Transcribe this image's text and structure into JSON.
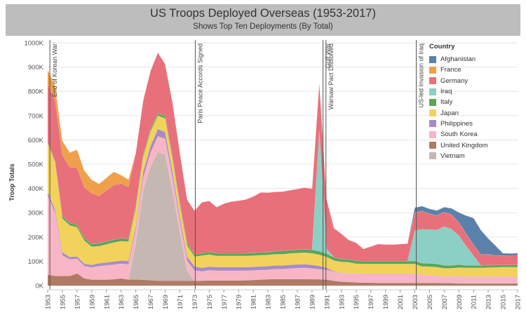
{
  "chart_data": {
    "type": "area",
    "stacked": true,
    "title": "US Troops Deployed Overseas (1953-2017)",
    "subtitle": "Shows Top Ten Deployments (By Total)",
    "ylabel": "Troop Totals",
    "xlabel": "",
    "ylim": [
      0,
      1000000
    ],
    "yticks": [
      0,
      100000,
      200000,
      300000,
      400000,
      500000,
      600000,
      700000,
      800000,
      900000,
      1000000
    ],
    "ytick_labels": [
      "0K",
      "100K",
      "200K",
      "300K",
      "400K",
      "500K",
      "600K",
      "700K",
      "800K",
      "900K",
      "1000K"
    ],
    "x": [
      1953,
      1954,
      1955,
      1956,
      1957,
      1958,
      1959,
      1960,
      1961,
      1962,
      1963,
      1964,
      1965,
      1966,
      1967,
      1968,
      1969,
      1970,
      1971,
      1972,
      1973,
      1974,
      1975,
      1976,
      1977,
      1978,
      1979,
      1980,
      1981,
      1982,
      1983,
      1984,
      1985,
      1986,
      1987,
      1988,
      1989,
      1990,
      1991,
      1992,
      1993,
      1994,
      1995,
      1996,
      1997,
      1998,
      1999,
      2000,
      2001,
      2002,
      2003,
      2004,
      2005,
      2006,
      2007,
      2008,
      2009,
      2010,
      2011,
      2012,
      2013,
      2014,
      2015,
      2016,
      2017
    ],
    "xticks": [
      1953,
      1955,
      1957,
      1959,
      1961,
      1963,
      1965,
      1967,
      1969,
      1971,
      1973,
      1975,
      1977,
      1979,
      1981,
      1983,
      1985,
      1987,
      1989,
      1991,
      1993,
      1995,
      1997,
      1999,
      2001,
      2003,
      2005,
      2007,
      2009,
      2011,
      2013,
      2015,
      2017
    ],
    "legend_title": "Country",
    "legend_position": "right",
    "grid": "horizontal",
    "series": [
      {
        "name": "United Kingdom",
        "color": "#b07a64",
        "values": [
          45000,
          40000,
          40000,
          40000,
          50000,
          30000,
          25000,
          25000,
          25000,
          26000,
          30000,
          25000,
          25000,
          24000,
          22000,
          20000,
          20000,
          20000,
          20000,
          20000,
          20000,
          20000,
          21000,
          21000,
          21000,
          21000,
          21000,
          22000,
          23000,
          25000,
          26000,
          27000,
          27000,
          27000,
          27000,
          27000,
          26000,
          26000,
          25000,
          20000,
          16000,
          15000,
          13000,
          12000,
          12000,
          11000,
          11000,
          11000,
          11000,
          11000,
          11000,
          11000,
          11000,
          11000,
          10000,
          10000,
          9000,
          9000,
          9000,
          9000,
          9000,
          9000,
          9000,
          9000,
          9000
        ]
      },
      {
        "name": "Vietnam",
        "color": "#c5b8b2",
        "values": [
          0,
          0,
          0,
          0,
          0,
          0,
          0,
          0,
          0,
          0,
          0,
          0,
          150000,
          370000,
          470000,
          530000,
          520000,
          370000,
          200000,
          40000,
          0,
          0,
          0,
          0,
          0,
          0,
          0,
          0,
          0,
          0,
          0,
          0,
          0,
          0,
          0,
          0,
          0,
          0,
          0,
          0,
          0,
          0,
          0,
          0,
          0,
          0,
          0,
          0,
          0,
          0,
          0,
          0,
          0,
          0,
          0,
          0,
          0,
          0,
          0,
          0,
          0,
          0,
          0,
          0,
          0
        ]
      },
      {
        "name": "South Korea",
        "color": "#f7b5c5",
        "values": [
          325000,
          260000,
          85000,
          68000,
          60000,
          50000,
          50000,
          55000,
          58000,
          60000,
          60000,
          62000,
          52000,
          50000,
          55000,
          65000,
          65000,
          55000,
          45000,
          42000,
          42000,
          38000,
          42000,
          40000,
          40000,
          40000,
          40000,
          39000,
          39000,
          39000,
          39000,
          41000,
          41000,
          43000,
          45000,
          46000,
          44000,
          41000,
          40000,
          36000,
          35000,
          35000,
          36000,
          36000,
          36000,
          37000,
          37000,
          37000,
          37000,
          37000,
          37000,
          32000,
          30000,
          29000,
          27000,
          27000,
          29000,
          28000,
          28000,
          28000,
          28000,
          28000,
          28000,
          27000,
          26000
        ]
      },
      {
        "name": "Philippines",
        "color": "#a98bc2",
        "values": [
          15000,
          14000,
          12000,
          10000,
          10000,
          10000,
          10000,
          12000,
          12000,
          13000,
          13000,
          14000,
          15000,
          25000,
          28000,
          30000,
          28000,
          25000,
          20000,
          17000,
          17000,
          15000,
          15000,
          15000,
          15000,
          15000,
          15000,
          15000,
          15000,
          15000,
          15000,
          15000,
          15000,
          15000,
          15000,
          15000,
          15000,
          14000,
          8000,
          2000,
          1000,
          1000,
          1000,
          1000,
          1000,
          1000,
          1000,
          1000,
          1000,
          1000,
          1000,
          1000,
          1000,
          1000,
          1000,
          1000,
          1000,
          1000,
          1000,
          1000,
          1000,
          1000,
          1000,
          1000,
          1000
        ]
      },
      {
        "name": "Japan",
        "color": "#f2d25a",
        "values": [
          200000,
          195000,
          140000,
          130000,
          120000,
          95000,
          75000,
          70000,
          75000,
          78000,
          80000,
          80000,
          75000,
          60000,
          60000,
          55000,
          55000,
          50000,
          45000,
          45000,
          40000,
          50000,
          50000,
          46000,
          46000,
          46000,
          46000,
          46000,
          46000,
          46000,
          46000,
          46000,
          46000,
          47000,
          47000,
          47000,
          48000,
          46000,
          45000,
          45000,
          45000,
          45000,
          40000,
          40000,
          40000,
          40000,
          40000,
          40000,
          40000,
          40000,
          40000,
          35000,
          36000,
          35000,
          33000,
          33000,
          35000,
          35000,
          35000,
          35000,
          36000,
          37000,
          38000,
          39000,
          40000
        ]
      },
      {
        "name": "Italy",
        "color": "#5aa55a",
        "values": [
          4000,
          5000,
          10000,
          10000,
          10000,
          10000,
          11000,
          12000,
          12000,
          12000,
          12000,
          11000,
          11000,
          10000,
          10000,
          10000,
          10000,
          10000,
          10000,
          10000,
          10000,
          10000,
          11000,
          11000,
          11000,
          11000,
          11000,
          11000,
          12000,
          12000,
          12000,
          13000,
          14000,
          14000,
          14000,
          14000,
          14000,
          14000,
          13000,
          13000,
          12000,
          12000,
          12000,
          12000,
          12000,
          12000,
          12000,
          12000,
          12000,
          12000,
          12000,
          13000,
          13000,
          13000,
          12000,
          12000,
          12000,
          10000,
          10000,
          10000,
          10000,
          9000,
          9000,
          9000,
          9000
        ]
      },
      {
        "name": "Iraq",
        "color": "#8ccfc4",
        "values": [
          0,
          0,
          0,
          0,
          0,
          0,
          0,
          0,
          0,
          0,
          0,
          0,
          0,
          0,
          0,
          0,
          0,
          0,
          0,
          0,
          0,
          0,
          0,
          0,
          0,
          0,
          0,
          0,
          0,
          0,
          0,
          0,
          0,
          0,
          0,
          0,
          0,
          500000,
          20000,
          0,
          0,
          0,
          0,
          0,
          0,
          0,
          0,
          0,
          0,
          0,
          125000,
          140000,
          140000,
          140000,
          160000,
          150000,
          120000,
          80000,
          40000,
          0,
          0,
          0,
          0,
          0,
          0
        ]
      },
      {
        "name": "Germany",
        "color": "#e8707a",
        "values": [
          240000,
          250000,
          250000,
          230000,
          235000,
          210000,
          210000,
          195000,
          210000,
          225000,
          225000,
          215000,
          220000,
          225000,
          240000,
          250000,
          215000,
          225000,
          210000,
          180000,
          180000,
          210000,
          210000,
          190000,
          205000,
          213000,
          217000,
          222000,
          232000,
          247000,
          245000,
          244000,
          244000,
          247000,
          250000,
          255000,
          252000,
          200000,
          205000,
          120000,
          105000,
          80000,
          75000,
          50000,
          60000,
          70000,
          68000,
          68000,
          70000,
          72000,
          75000,
          75000,
          65000,
          60000,
          60000,
          60000,
          55000,
          50000,
          45000,
          45000,
          45000,
          40000,
          38000,
          37000,
          38000
        ]
      },
      {
        "name": "France",
        "color": "#f0a04b",
        "values": [
          60000,
          60000,
          60000,
          60000,
          75000,
          68000,
          55000,
          50000,
          52000,
          55000,
          35000,
          30000,
          0,
          0,
          0,
          0,
          0,
          0,
          0,
          0,
          0,
          0,
          0,
          0,
          0,
          0,
          0,
          0,
          0,
          0,
          0,
          0,
          0,
          0,
          0,
          0,
          0,
          0,
          0,
          0,
          0,
          0,
          0,
          0,
          0,
          0,
          0,
          0,
          0,
          0,
          0,
          0,
          0,
          0,
          0,
          0,
          0,
          0,
          0,
          0,
          0,
          0,
          0,
          0,
          0
        ]
      },
      {
        "name": "Afghanistan",
        "color": "#5a81ab",
        "values": [
          0,
          0,
          0,
          0,
          0,
          0,
          0,
          0,
          0,
          0,
          0,
          0,
          0,
          0,
          0,
          0,
          0,
          0,
          0,
          0,
          0,
          0,
          0,
          0,
          0,
          0,
          0,
          0,
          0,
          0,
          0,
          0,
          0,
          0,
          0,
          0,
          0,
          0,
          0,
          0,
          0,
          0,
          0,
          0,
          0,
          0,
          0,
          0,
          0,
          0,
          20000,
          20000,
          20000,
          20000,
          20000,
          25000,
          40000,
          75000,
          110000,
          100000,
          65000,
          40000,
          10000,
          10000,
          10000
        ]
      }
    ],
    "legend_order": [
      "Afghanistan",
      "France",
      "Germany",
      "Iraq",
      "Italy",
      "Japan",
      "Philippines",
      "South Korea",
      "United Kingdom",
      "Vietnam"
    ],
    "annotations": [
      {
        "x": 1953.3,
        "label": "End of Korean War"
      },
      {
        "x": 1973.1,
        "label": "Paris Peace Accords Signed"
      },
      {
        "x": 1990.5,
        "label": "Gulf War"
      },
      {
        "x": 1990.9,
        "label": "Warsaw Pact Dissolved"
      },
      {
        "x": 2003.2,
        "label": "US-led Invasion of Iraq"
      }
    ]
  }
}
